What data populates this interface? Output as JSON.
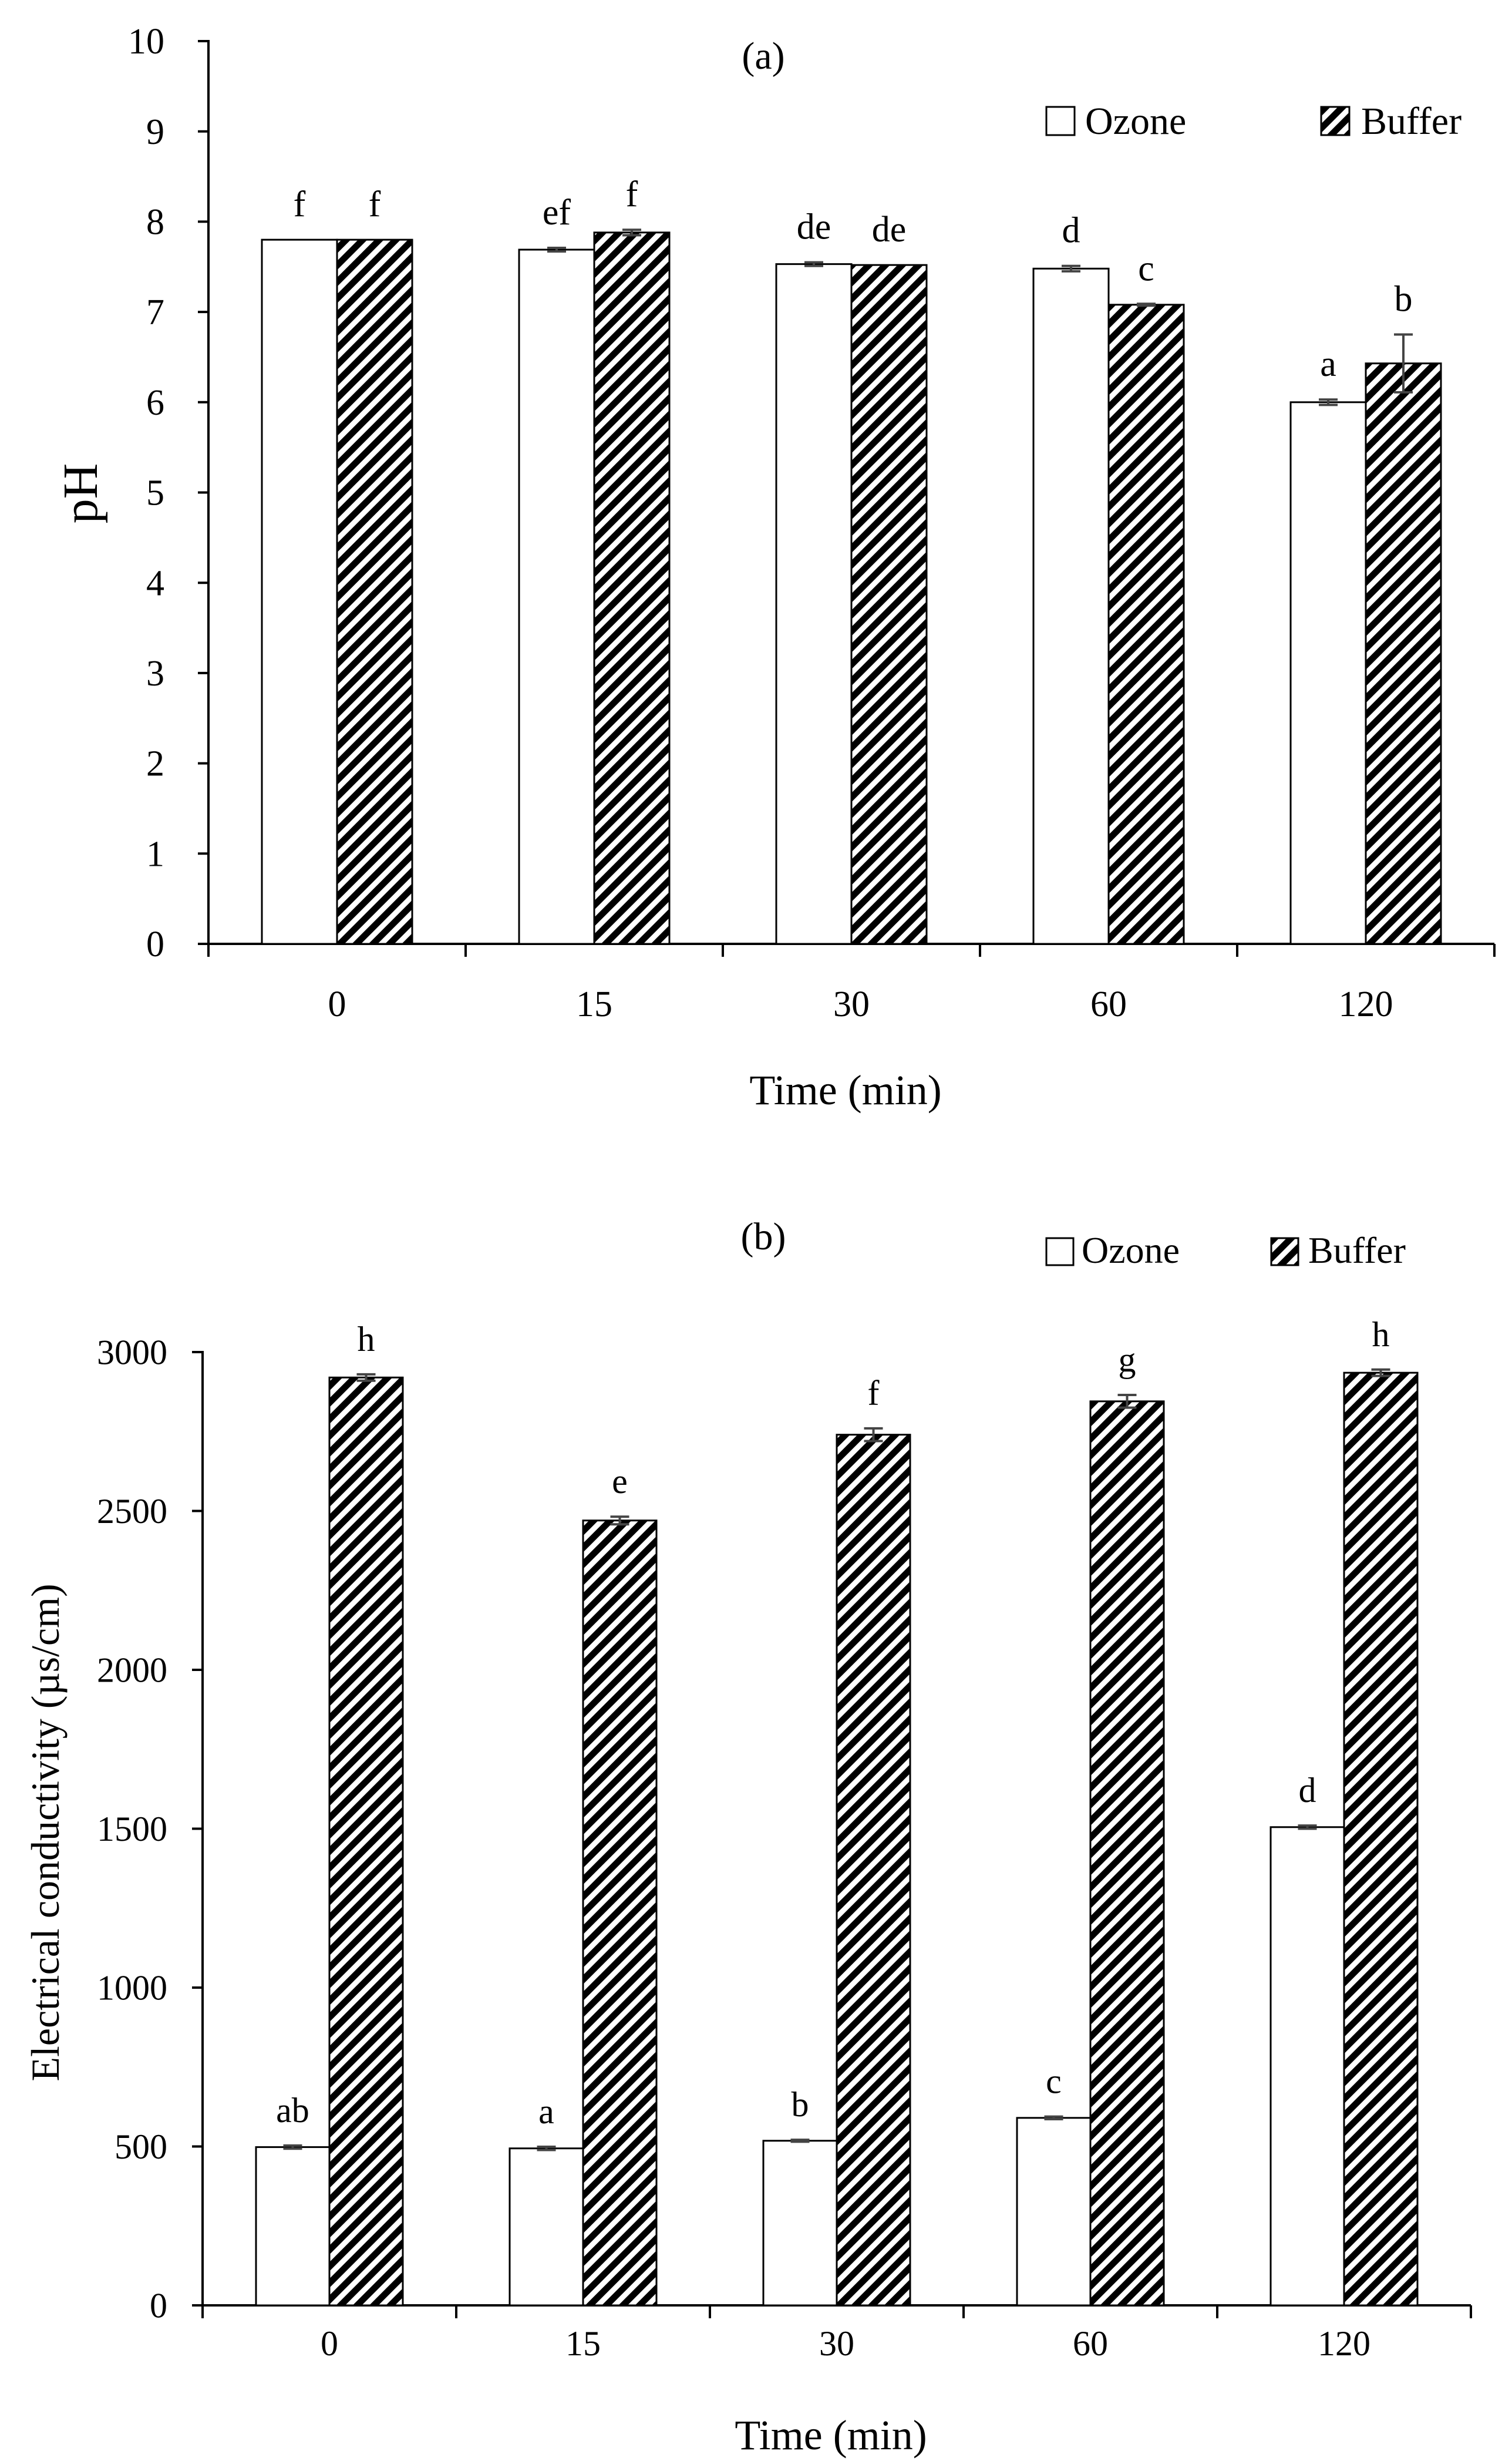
{
  "colors": {
    "ozone_fill": "#ffffff",
    "buffer_stripe": "#000000",
    "axis": "#000000"
  },
  "chart_data": [
    {
      "type": "bar",
      "title": "(a)",
      "xlabel": "Time (min)",
      "ylabel": "pH",
      "categories": [
        "0",
        "15",
        "30",
        "60",
        "120"
      ],
      "ylim": [
        0,
        10
      ],
      "yticks": [
        "0",
        "1",
        "2",
        "3",
        "4",
        "5",
        "6",
        "7",
        "8",
        "9",
        "10"
      ],
      "legend_position": "top-right",
      "series": [
        {
          "name": "Ozone",
          "pattern": "plain",
          "values": [
            7.8,
            7.69,
            7.53,
            7.48,
            6.0
          ],
          "errors": [
            0,
            0.02,
            0.02,
            0.03,
            0.03
          ],
          "labels": [
            "f",
            "ef",
            "de",
            "d",
            "a"
          ]
        },
        {
          "name": "Buffer",
          "pattern": "hatched",
          "values": [
            7.8,
            7.88,
            7.52,
            7.08,
            6.43
          ],
          "errors": [
            0,
            0.03,
            0,
            0.01,
            0.32
          ],
          "labels": [
            "f",
            "f",
            "de",
            "c",
            "b"
          ]
        }
      ]
    },
    {
      "type": "bar",
      "title": "(b)",
      "xlabel": "Time (min)",
      "ylabel": "Electrical conductivity (µs/cm)",
      "categories": [
        "0",
        "15",
        "30",
        "60",
        "120"
      ],
      "ylim": [
        0,
        3000
      ],
      "yticks": [
        "0",
        "500",
        "1000",
        "1500",
        "2000",
        "2500",
        "3000"
      ],
      "legend_position": "top-right",
      "series": [
        {
          "name": "Ozone",
          "pattern": "plain",
          "values": [
            498,
            494,
            518,
            590,
            1505
          ],
          "errors": [
            5,
            5,
            3,
            4,
            5
          ],
          "labels": [
            "ab",
            "a",
            "b",
            "c",
            "d"
          ]
        },
        {
          "name": "Buffer",
          "pattern": "hatched",
          "values": [
            2920,
            2470,
            2740,
            2845,
            2935
          ],
          "errors": [
            10,
            12,
            20,
            20,
            10
          ],
          "labels": [
            "h",
            "e",
            "f",
            "g",
            "h"
          ]
        }
      ]
    }
  ]
}
